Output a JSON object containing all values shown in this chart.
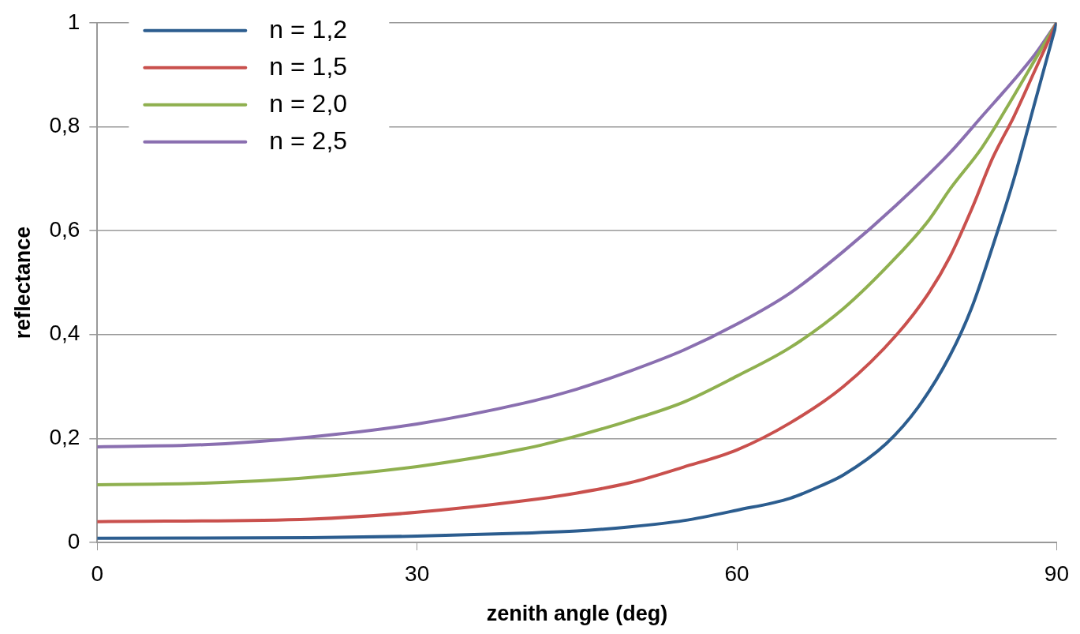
{
  "chart_data": {
    "type": "line",
    "xlabel": "zenith angle (deg)",
    "ylabel": "reflectance",
    "xlim": [
      0,
      90
    ],
    "xticks": [
      0,
      30,
      60,
      90
    ],
    "ylim": [
      0,
      1
    ],
    "yticks": [
      0,
      {
        "value": 0.2,
        "label": "0,2"
      },
      {
        "value": 0.4,
        "label": "0,4"
      },
      {
        "value": 0.6,
        "label": "0,6"
      },
      {
        "value": 0.8,
        "label": "0,8"
      },
      1
    ],
    "grid": "y",
    "legend": "top left",
    "marker": "none",
    "line_style": "solid",
    "series": [
      {
        "name": "n = 1,2",
        "color": "#2c5d8f",
        "x": [
          0,
          20,
          30,
          40,
          45,
          50,
          55,
          60,
          65,
          68,
          70,
          74,
          77,
          80,
          82,
          84,
          86,
          88,
          90
        ],
        "values": [
          0.008,
          0.009,
          0.012,
          0.018,
          0.022,
          0.03,
          0.042,
          0.062,
          0.085,
          0.11,
          0.13,
          0.19,
          0.26,
          0.36,
          0.45,
          0.57,
          0.7,
          0.85,
          1
        ]
      },
      {
        "name": "n = 1,5",
        "color": "#c9504d",
        "x": [
          0,
          20,
          30,
          40,
          45,
          50,
          55,
          60,
          65,
          70,
          75,
          78,
          80,
          82,
          84,
          86,
          88,
          90
        ],
        "values": [
          0.04,
          0.045,
          0.058,
          0.08,
          0.095,
          0.115,
          0.145,
          0.178,
          0.23,
          0.3,
          0.4,
          0.48,
          0.55,
          0.64,
          0.74,
          0.82,
          0.91,
          1
        ]
      },
      {
        "name": "n = 2,0",
        "color": "#8fb04f",
        "x": [
          0,
          10,
          20,
          30,
          40,
          45,
          50,
          55,
          60,
          65,
          70,
          75,
          78,
          80,
          83,
          86,
          88,
          90
        ],
        "values": [
          0.111,
          0.114,
          0.125,
          0.146,
          0.18,
          0.205,
          0.235,
          0.27,
          0.32,
          0.375,
          0.45,
          0.55,
          0.62,
          0.68,
          0.76,
          0.86,
          0.93,
          1
        ]
      },
      {
        "name": "n = 2,5",
        "color": "#8a6fb0",
        "x": [
          0,
          10,
          20,
          30,
          40,
          45,
          50,
          55,
          60,
          65,
          70,
          75,
          80,
          83,
          86,
          88,
          90
        ],
        "values": [
          0.184,
          0.188,
          0.203,
          0.228,
          0.268,
          0.295,
          0.33,
          0.37,
          0.42,
          0.48,
          0.56,
          0.65,
          0.75,
          0.82,
          0.89,
          0.94,
          1
        ]
      }
    ]
  }
}
